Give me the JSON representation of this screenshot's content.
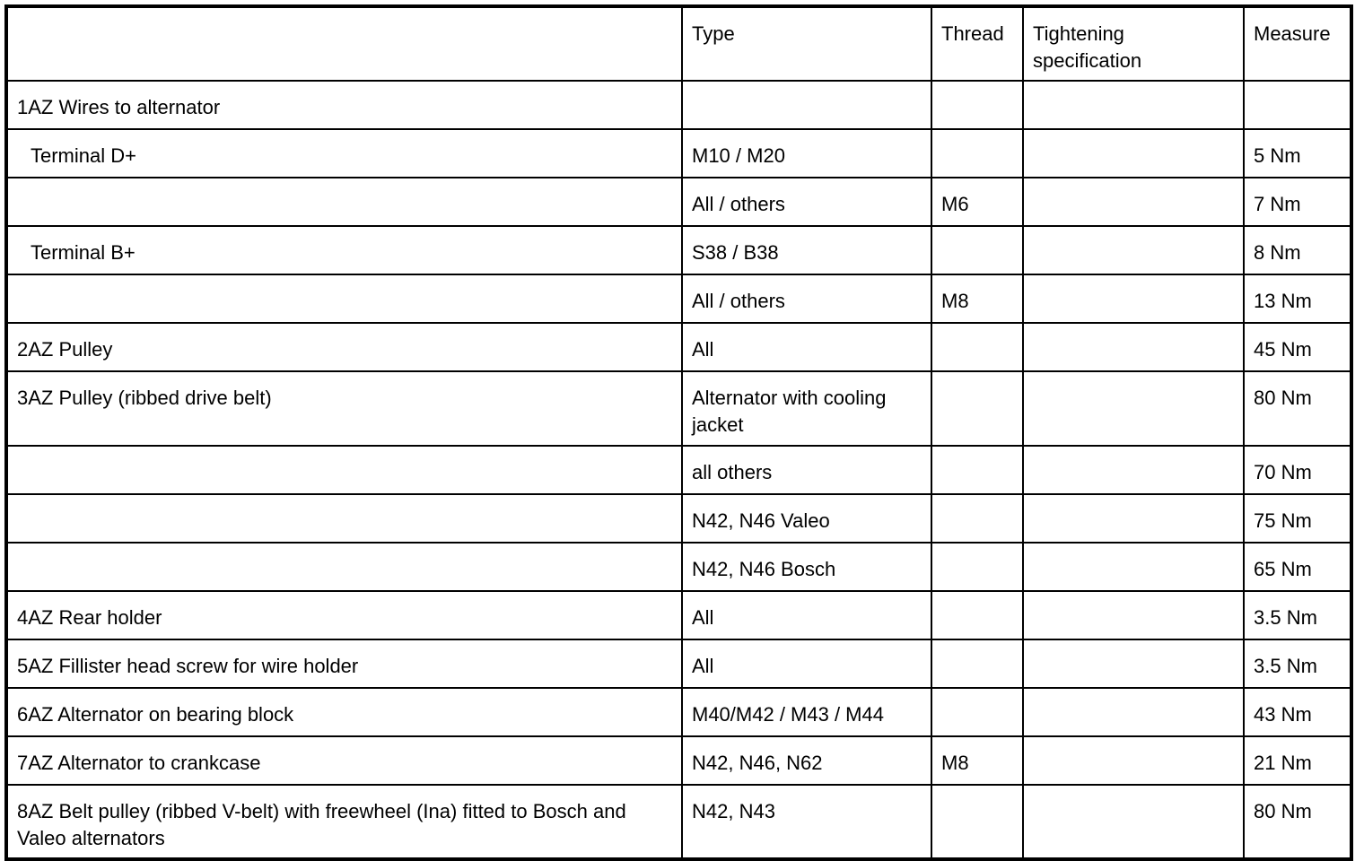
{
  "header": {
    "item": "",
    "type": "Type",
    "thread": "Thread",
    "tightening": "Tightening specification",
    "measure": "Measure"
  },
  "rows": [
    {
      "item": "1AZ  Wires to alternator",
      "type": "",
      "thread": "",
      "tightening": "",
      "measure": "",
      "indent": false,
      "tall": false
    },
    {
      "item": "Terminal D+",
      "type": "M10 / M20",
      "thread": "",
      "tightening": "",
      "measure": "5 Nm",
      "indent": true,
      "tall": false
    },
    {
      "item": "",
      "type": "All / others",
      "thread": "M6",
      "tightening": "",
      "measure": "7 Nm",
      "indent": false,
      "tall": false
    },
    {
      "item": "Terminal B+",
      "type": "S38 / B38",
      "thread": "",
      "tightening": "",
      "measure": "8 Nm",
      "indent": true,
      "tall": false
    },
    {
      "item": "",
      "type": "All / others",
      "thread": "M8",
      "tightening": "",
      "measure": "13 Nm",
      "indent": false,
      "tall": false
    },
    {
      "item": "2AZ  Pulley",
      "type": "All",
      "thread": "",
      "tightening": "",
      "measure": "45 Nm",
      "indent": false,
      "tall": false
    },
    {
      "item": "3AZ  Pulley (ribbed drive belt)",
      "type": "Alternator with cooling jacket",
      "thread": "",
      "tightening": "",
      "measure": "80 Nm",
      "indent": false,
      "tall": true
    },
    {
      "item": "",
      "type": "all others",
      "thread": "",
      "tightening": "",
      "measure": "70 Nm",
      "indent": false,
      "tall": false
    },
    {
      "item": "",
      "type": "N42, N46 Valeo",
      "thread": "",
      "tightening": "",
      "measure": "75 Nm",
      "indent": false,
      "tall": false
    },
    {
      "item": "",
      "type": "N42, N46 Bosch",
      "thread": "",
      "tightening": "",
      "measure": "65 Nm",
      "indent": false,
      "tall": false
    },
    {
      "item": "4AZ  Rear holder",
      "type": "All",
      "thread": "",
      "tightening": "",
      "measure": "3.5 Nm",
      "indent": false,
      "tall": false
    },
    {
      "item": "5AZ  Fillister head screw for wire holder",
      "type": "All",
      "thread": "",
      "tightening": "",
      "measure": "3.5 Nm",
      "indent": false,
      "tall": false
    },
    {
      "item": "6AZ  Alternator on bearing block",
      "type": "M40/M42 / M43 / M44",
      "thread": "",
      "tightening": "",
      "measure": "43 Nm",
      "indent": false,
      "tall": false
    },
    {
      "item": "7AZ  Alternator to crankcase",
      "type": "N42, N46, N62",
      "thread": "M8",
      "tightening": "",
      "measure": "21 Nm",
      "indent": false,
      "tall": false
    },
    {
      "item": "8AZ  Belt pulley (ribbed V-belt) with freewheel (Ina) fitted to Bosch and Valeo alternators",
      "type": "N42, N43",
      "thread": "",
      "tightening": "",
      "measure": "80 Nm",
      "indent": false,
      "tall": true
    }
  ]
}
